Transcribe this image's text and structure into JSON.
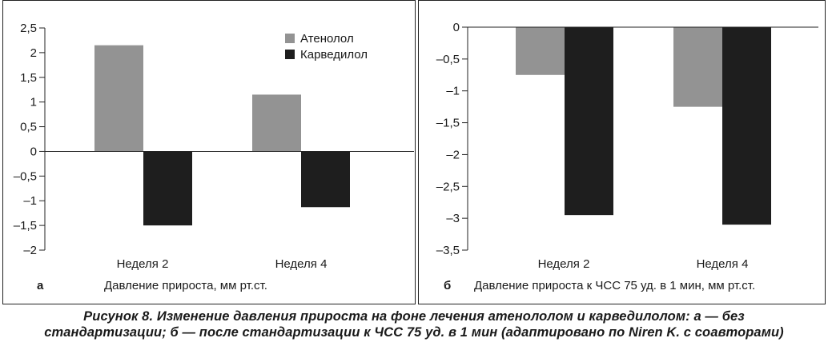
{
  "charts": [
    {
      "panel_letter": "а",
      "xlabel": "Давление прироста, мм рт.ст.",
      "legend_placement": "top-right"
    },
    {
      "panel_letter": "б",
      "xlabel": "Давление прироста к ЧСС 75 уд. в 1 мин, мм рт.ст.",
      "legend_placement": "none"
    }
  ],
  "chart_data": [
    {
      "type": "bar",
      "categories": [
        "Неделя 2",
        "Неделя 4"
      ],
      "series": [
        {
          "name": "Атенолол",
          "values": [
            2.15,
            1.15
          ],
          "color": "#939393"
        },
        {
          "name": "Карведилол",
          "values": [
            -1.5,
            -1.13
          ],
          "color": "#1e1e1e"
        }
      ],
      "title": "",
      "xlabel": "Давление прироста, мм рт.ст.",
      "ylabel": "",
      "ylim": [
        -2,
        2.5
      ],
      "yticks": [
        2.5,
        2,
        1.5,
        1,
        0.5,
        0,
        -0.5,
        -1,
        -1.5,
        -2
      ],
      "ytick_labels": [
        "2,5",
        "2",
        "1,5",
        "1",
        "0,5",
        "0",
        "–0,5",
        "–1",
        "–1,5",
        "–2"
      ],
      "grid": false,
      "legend": "top-right"
    },
    {
      "type": "bar",
      "categories": [
        "Неделя 2",
        "Неделя 4"
      ],
      "series": [
        {
          "name": "Атенолол",
          "values": [
            -0.75,
            -1.25
          ],
          "color": "#939393"
        },
        {
          "name": "Карведилол",
          "values": [
            -2.95,
            -3.1
          ],
          "color": "#1e1e1e"
        }
      ],
      "title": "",
      "xlabel": "Давление прироста к ЧСС 75 уд. в 1 мин, мм рт.ст.",
      "ylabel": "",
      "ylim": [
        -3.5,
        0
      ],
      "yticks": [
        0,
        -0.5,
        -1,
        -1.5,
        -2,
        -2.5,
        -3,
        -3.5
      ],
      "ytick_labels": [
        "0",
        "–0,5",
        "–1",
        "–1,5",
        "–2",
        "–2,5",
        "–3",
        "–3,5"
      ],
      "grid": false,
      "legend": "none"
    }
  ],
  "caption": {
    "line1": "Рисунок 8. Изменение давления прироста на фоне лечения атенололом и карведилолом: а — без",
    "line2": "стандартизации; б — после стандартизации к ЧСС 75 уд. в 1 мин (адаптировано по Niren K. с соавторами)"
  }
}
